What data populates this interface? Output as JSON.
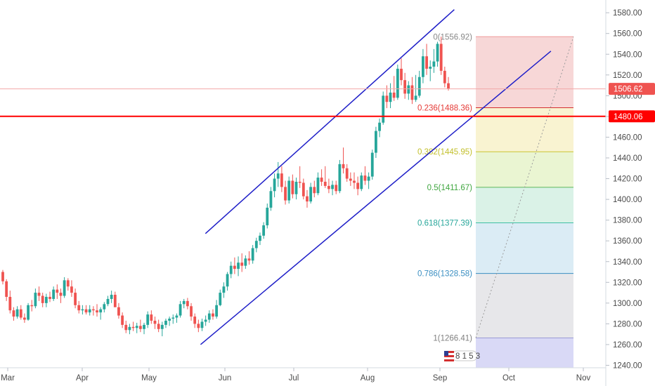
{
  "chart_data": {
    "type": "candlestick",
    "title": "",
    "xlabel": "",
    "ylabel": "",
    "x_ticks": [
      "Mar",
      "Apr",
      "May",
      "Jun",
      "Jul",
      "Aug",
      "Sep",
      "Oct",
      "Nov"
    ],
    "y_ticks": [
      1240,
      1260,
      1280,
      1300,
      1320,
      1340,
      1360,
      1380,
      1400,
      1420,
      1440,
      1460,
      1480,
      1500,
      1520,
      1540,
      1560,
      1580
    ],
    "ylim": [
      1236,
      1584
    ],
    "grid": false,
    "colors": {
      "up": "#26a69a",
      "down": "#ef5350",
      "channel": "#1e1ec8",
      "support": "#ff0000"
    },
    "candles": [
      [
        1330,
        1332,
        1318,
        1321
      ],
      [
        1321,
        1323,
        1302,
        1306
      ],
      [
        1306,
        1312,
        1290,
        1293
      ],
      [
        1293,
        1296,
        1283,
        1287
      ],
      [
        1287,
        1297,
        1285,
        1294
      ],
      [
        1294,
        1298,
        1284,
        1286
      ],
      [
        1286,
        1290,
        1281,
        1284
      ],
      [
        1284,
        1300,
        1283,
        1298
      ],
      [
        1298,
        1303,
        1292,
        1297
      ],
      [
        1297,
        1314,
        1295,
        1310
      ],
      [
        1310,
        1316,
        1302,
        1307
      ],
      [
        1307,
        1310,
        1296,
        1300
      ],
      [
        1300,
        1309,
        1296,
        1306
      ],
      [
        1306,
        1311,
        1301,
        1304
      ],
      [
        1304,
        1316,
        1302,
        1313
      ],
      [
        1313,
        1318,
        1304,
        1310
      ],
      [
        1310,
        1314,
        1300,
        1307
      ],
      [
        1307,
        1325,
        1305,
        1322
      ],
      [
        1322,
        1324,
        1312,
        1316
      ],
      [
        1316,
        1322,
        1306,
        1310
      ],
      [
        1310,
        1314,
        1295,
        1298
      ],
      [
        1298,
        1302,
        1290,
        1293
      ],
      [
        1293,
        1298,
        1289,
        1294
      ],
      [
        1294,
        1298,
        1289,
        1291
      ],
      [
        1291,
        1298,
        1288,
        1294
      ],
      [
        1294,
        1297,
        1288,
        1293
      ],
      [
        1293,
        1299,
        1287,
        1291
      ],
      [
        1291,
        1296,
        1284,
        1294
      ],
      [
        1294,
        1301,
        1291,
        1299
      ],
      [
        1299,
        1307,
        1297,
        1304
      ],
      [
        1304,
        1312,
        1300,
        1308
      ],
      [
        1308,
        1311,
        1298,
        1296
      ],
      [
        1296,
        1300,
        1285,
        1288
      ],
      [
        1288,
        1291,
        1276,
        1279
      ],
      [
        1279,
        1283,
        1271,
        1274
      ],
      [
        1274,
        1280,
        1270,
        1277
      ],
      [
        1277,
        1282,
        1273,
        1276
      ],
      [
        1276,
        1281,
        1271,
        1278
      ],
      [
        1278,
        1284,
        1272,
        1275
      ],
      [
        1275,
        1281,
        1270,
        1279
      ],
      [
        1279,
        1292,
        1276,
        1289
      ],
      [
        1289,
        1293,
        1280,
        1283
      ],
      [
        1283,
        1287,
        1275,
        1280
      ],
      [
        1280,
        1284,
        1272,
        1275
      ],
      [
        1275,
        1282,
        1268,
        1279
      ],
      [
        1279,
        1285,
        1276,
        1283
      ],
      [
        1283,
        1287,
        1278,
        1285
      ],
      [
        1285,
        1289,
        1280,
        1286
      ],
      [
        1286,
        1290,
        1281,
        1288
      ],
      [
        1288,
        1302,
        1286,
        1299
      ],
      [
        1299,
        1304,
        1295,
        1302
      ],
      [
        1302,
        1305,
        1294,
        1297
      ],
      [
        1297,
        1300,
        1283,
        1287
      ],
      [
        1287,
        1290,
        1276,
        1280
      ],
      [
        1280,
        1284,
        1272,
        1276
      ],
      [
        1276,
        1285,
        1273,
        1282
      ],
      [
        1282,
        1288,
        1278,
        1284
      ],
      [
        1284,
        1293,
        1281,
        1290
      ],
      [
        1290,
        1294,
        1284,
        1287
      ],
      [
        1287,
        1303,
        1285,
        1298
      ],
      [
        1298,
        1313,
        1297,
        1310
      ],
      [
        1310,
        1320,
        1305,
        1316
      ],
      [
        1316,
        1330,
        1312,
        1328
      ],
      [
        1328,
        1340,
        1324,
        1336
      ],
      [
        1336,
        1344,
        1328,
        1333
      ],
      [
        1333,
        1345,
        1326,
        1339
      ],
      [
        1339,
        1348,
        1330,
        1336
      ],
      [
        1336,
        1346,
        1333,
        1343
      ],
      [
        1343,
        1350,
        1337,
        1341
      ],
      [
        1341,
        1356,
        1338,
        1353
      ],
      [
        1353,
        1363,
        1349,
        1360
      ],
      [
        1360,
        1368,
        1356,
        1365
      ],
      [
        1365,
        1378,
        1362,
        1375
      ],
      [
        1375,
        1396,
        1372,
        1392
      ],
      [
        1392,
        1412,
        1389,
        1408
      ],
      [
        1408,
        1425,
        1402,
        1420
      ],
      [
        1420,
        1436,
        1412,
        1425
      ],
      [
        1425,
        1432,
        1407,
        1412
      ],
      [
        1412,
        1418,
        1395,
        1399
      ],
      [
        1399,
        1422,
        1396,
        1418
      ],
      [
        1418,
        1424,
        1401,
        1405
      ],
      [
        1405,
        1421,
        1400,
        1417
      ],
      [
        1417,
        1432,
        1411,
        1416
      ],
      [
        1416,
        1420,
        1400,
        1403
      ],
      [
        1403,
        1409,
        1392,
        1398
      ],
      [
        1398,
        1416,
        1396,
        1412
      ],
      [
        1412,
        1418,
        1402,
        1406
      ],
      [
        1406,
        1426,
        1404,
        1421
      ],
      [
        1421,
        1429,
        1413,
        1417
      ],
      [
        1417,
        1432,
        1411,
        1413
      ],
      [
        1413,
        1420,
        1406,
        1410
      ],
      [
        1410,
        1418,
        1404,
        1414
      ],
      [
        1414,
        1418,
        1405,
        1408
      ],
      [
        1408,
        1438,
        1406,
        1434
      ],
      [
        1434,
        1450,
        1425,
        1430
      ],
      [
        1430,
        1434,
        1417,
        1420
      ],
      [
        1420,
        1426,
        1413,
        1418
      ],
      [
        1418,
        1426,
        1410,
        1416
      ],
      [
        1416,
        1422,
        1404,
        1410
      ],
      [
        1410,
        1426,
        1408,
        1423
      ],
      [
        1423,
        1432,
        1414,
        1418
      ],
      [
        1418,
        1426,
        1410,
        1422
      ],
      [
        1422,
        1448,
        1419,
        1445
      ],
      [
        1445,
        1470,
        1440,
        1466
      ],
      [
        1466,
        1478,
        1460,
        1474
      ],
      [
        1474,
        1504,
        1472,
        1500
      ],
      [
        1500,
        1510,
        1488,
        1494
      ],
      [
        1494,
        1512,
        1488,
        1503
      ],
      [
        1503,
        1519,
        1495,
        1498
      ],
      [
        1498,
        1530,
        1496,
        1526
      ],
      [
        1526,
        1536,
        1510,
        1515
      ],
      [
        1515,
        1522,
        1497,
        1502
      ],
      [
        1502,
        1514,
        1496,
        1510
      ],
      [
        1510,
        1518,
        1492,
        1496
      ],
      [
        1496,
        1520,
        1494,
        1500
      ],
      [
        1500,
        1524,
        1498,
        1518
      ],
      [
        1518,
        1545,
        1512,
        1538
      ],
      [
        1538,
        1550,
        1520,
        1526
      ],
      [
        1526,
        1534,
        1514,
        1528
      ],
      [
        1528,
        1545,
        1522,
        1533
      ],
      [
        1533,
        1552,
        1528,
        1550
      ],
      [
        1550,
        1557,
        1520,
        1524
      ],
      [
        1524,
        1528,
        1508,
        1512
      ],
      [
        1512,
        1518,
        1505,
        1507
      ]
    ],
    "annotations": {
      "channel_upper": [
        [
          "2019-05-23",
          1367
        ],
        [
          "2019-09-03",
          1583
        ]
      ],
      "channel_lower": [
        [
          "2019-05-21",
          1260
        ],
        [
          "2019-10-13",
          1543
        ]
      ],
      "support_level": 1480.06,
      "fib_levels": [
        {
          "label": "0(1556.92)",
          "value": 1556.92
        },
        {
          "label": "0.236(1488.36)",
          "value": 1488.36
        },
        {
          "label": "0.382(1445.95)",
          "value": 1445.95
        },
        {
          "label": "0.5(1411.67)",
          "value": 1411.67
        },
        {
          "label": "0.618(1377.39)",
          "value": 1377.39
        },
        {
          "label": "0.786(1328.58)",
          "value": 1328.58
        },
        {
          "label": "1(1266.41)",
          "value": 1266.41
        }
      ],
      "price_tags": [
        {
          "label": "1506.62",
          "value": 1506.62,
          "color": "#ef5350"
        },
        {
          "label": "1480.06",
          "value": 1480.06,
          "color": "#ff0000"
        }
      ],
      "event_badge": "8 1 5 3"
    }
  }
}
